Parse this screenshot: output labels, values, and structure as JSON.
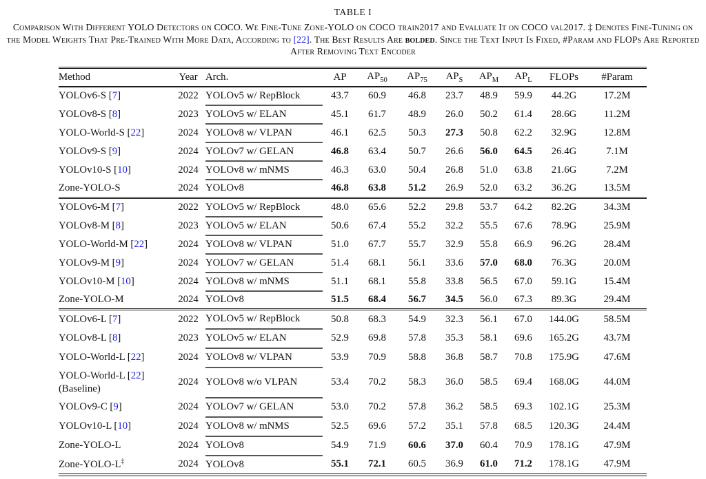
{
  "caption": {
    "label": "TABLE I",
    "part1": "Comparison With Different YOLO Detectors on COCO. We Fine-Tune Zone-YOLO on COCO train2017 and Evaluate It on COCO val2017. ‡ Denotes Fine-Tuning on the Model Weights That Pre-Trained With More Data, According to ",
    "ref": "[22]",
    "part2": ". The Best Results Are ",
    "bold_word": "bolded",
    "part3": ". Since the Text Input Is Fixed, #Param and FLOPs Are Reported After Removing Text Encoder"
  },
  "table": {
    "headers": [
      {
        "text": "Method",
        "sub": ""
      },
      {
        "text": "Year",
        "sub": ""
      },
      {
        "text": "Arch.",
        "sub": ""
      },
      {
        "text": "AP",
        "sub": ""
      },
      {
        "text": "AP",
        "sub": "50"
      },
      {
        "text": "AP",
        "sub": "75"
      },
      {
        "text": "AP",
        "sub": "S"
      },
      {
        "text": "AP",
        "sub": "M"
      },
      {
        "text": "AP",
        "sub": "L"
      },
      {
        "text": "FLOPs",
        "sub": ""
      },
      {
        "text": "#Param",
        "sub": ""
      }
    ],
    "sections": [
      {
        "id": "S",
        "rows": [
          {
            "method": "YOLOv6-S",
            "ref": "7",
            "sup": "",
            "note": "",
            "year": "2022",
            "arch": "YOLOv5 w/ RepBlock",
            "values": [
              "43.7",
              "60.9",
              "46.8",
              "23.7",
              "48.9",
              "59.9",
              "44.2G",
              "17.2M"
            ],
            "bold": []
          },
          {
            "method": "YOLOv8-S",
            "ref": "8",
            "sup": "",
            "note": "",
            "year": "2023",
            "arch": "YOLOv5 w/ ELAN",
            "values": [
              "45.1",
              "61.7",
              "48.9",
              "26.0",
              "50.2",
              "61.4",
              "28.6G",
              "11.2M"
            ],
            "bold": []
          },
          {
            "method": "YOLO-World-S",
            "ref": "22",
            "sup": "",
            "note": "",
            "year": "2024",
            "arch": "YOLOv8 w/ VLPAN",
            "values": [
              "46.1",
              "62.5",
              "50.3",
              "27.3",
              "50.8",
              "62.2",
              "32.9G",
              "12.8M"
            ],
            "bold": [
              3
            ]
          },
          {
            "method": "YOLOv9-S",
            "ref": "9",
            "sup": "",
            "note": "",
            "year": "2024",
            "arch": "YOLOv7 w/ GELAN",
            "values": [
              "46.8",
              "63.4",
              "50.7",
              "26.6",
              "56.0",
              "64.5",
              "26.4G",
              "7.1M"
            ],
            "bold": [
              0,
              4,
              5
            ]
          },
          {
            "method": "YOLOv10-S",
            "ref": "10",
            "sup": "",
            "note": "",
            "year": "2024",
            "arch": "YOLOv8 w/ mNMS",
            "values": [
              "46.3",
              "63.0",
              "50.4",
              "26.8",
              "51.0",
              "63.8",
              "21.6G",
              "7.2M"
            ],
            "bold": []
          },
          {
            "method": "Zone-YOLO-S",
            "ref": "",
            "sup": "",
            "note": "",
            "year": "2024",
            "arch": "YOLOv8",
            "values": [
              "46.8",
              "63.8",
              "51.2",
              "26.9",
              "52.0",
              "63.2",
              "36.2G",
              "13.5M"
            ],
            "bold": [
              0,
              1,
              2
            ]
          }
        ]
      },
      {
        "id": "M",
        "rows": [
          {
            "method": "YOLOv6-M",
            "ref": "7",
            "sup": "",
            "note": "",
            "year": "2022",
            "arch": "YOLOv5 w/ RepBlock",
            "values": [
              "48.0",
              "65.6",
              "52.2",
              "29.8",
              "53.7",
              "64.2",
              "82.2G",
              "34.3M"
            ],
            "bold": []
          },
          {
            "method": "YOLOv8-M",
            "ref": "8",
            "sup": "",
            "note": "",
            "year": "2023",
            "arch": "YOLOv5 w/ ELAN",
            "values": [
              "50.6",
              "67.4",
              "55.2",
              "32.2",
              "55.5",
              "67.6",
              "78.9G",
              "25.9M"
            ],
            "bold": []
          },
          {
            "method": "YOLO-World-M",
            "ref": "22",
            "sup": "",
            "note": "",
            "year": "2024",
            "arch": "YOLOv8 w/ VLPAN",
            "values": [
              "51.0",
              "67.7",
              "55.7",
              "32.9",
              "55.8",
              "66.9",
              "96.2G",
              "28.4M"
            ],
            "bold": []
          },
          {
            "method": "YOLOv9-M",
            "ref": "9",
            "sup": "",
            "note": "",
            "year": "2024",
            "arch": "YOLOv7 w/ GELAN",
            "values": [
              "51.4",
              "68.1",
              "56.1",
              "33.6",
              "57.0",
              "68.0",
              "76.3G",
              "20.0M"
            ],
            "bold": [
              4,
              5
            ]
          },
          {
            "method": "YOLOv10-M",
            "ref": "10",
            "sup": "",
            "note": "",
            "year": "2024",
            "arch": "YOLOv8 w/ mNMS",
            "values": [
              "51.1",
              "68.1",
              "55.8",
              "33.8",
              "56.5",
              "67.0",
              "59.1G",
              "15.4M"
            ],
            "bold": []
          },
          {
            "method": "Zone-YOLO-M",
            "ref": "",
            "sup": "",
            "note": "",
            "year": "2024",
            "arch": "YOLOv8",
            "values": [
              "51.5",
              "68.4",
              "56.7",
              "34.5",
              "56.0",
              "67.3",
              "89.3G",
              "29.4M"
            ],
            "bold": [
              0,
              1,
              2,
              3
            ]
          }
        ]
      },
      {
        "id": "L",
        "rows": [
          {
            "method": "YOLOv6-L",
            "ref": "7",
            "sup": "",
            "note": "",
            "year": "2022",
            "arch": "YOLOv5 w/ RepBlock",
            "values": [
              "50.8",
              "68.3",
              "54.9",
              "32.3",
              "56.1",
              "67.0",
              "144.0G",
              "58.5M"
            ],
            "bold": []
          },
          {
            "method": "YOLOv8-L",
            "ref": "8",
            "sup": "",
            "note": "",
            "year": "2023",
            "arch": "YOLOv5 w/ ELAN",
            "values": [
              "52.9",
              "69.8",
              "57.8",
              "35.3",
              "58.1",
              "69.6",
              "165.2G",
              "43.7M"
            ],
            "bold": []
          },
          {
            "method": "YOLO-World-L",
            "ref": "22",
            "sup": "",
            "note": "",
            "year": "2024",
            "arch": "YOLOv8 w/ VLPAN",
            "values": [
              "53.9",
              "70.9",
              "58.8",
              "36.8",
              "58.7",
              "70.8",
              "175.9G",
              "47.6M"
            ],
            "bold": []
          },
          {
            "method": "YOLO-World-L",
            "ref": "22",
            "sup": "",
            "note": "(Baseline)",
            "year": "2024",
            "arch": "YOLOv8 w/o VLPAN",
            "values": [
              "53.4",
              "70.2",
              "58.3",
              "36.0",
              "58.5",
              "69.4",
              "168.0G",
              "44.0M"
            ],
            "bold": []
          },
          {
            "method": "YOLOv9-C",
            "ref": "9",
            "sup": "",
            "note": "",
            "year": "2024",
            "arch": "YOLOv7 w/ GELAN",
            "values": [
              "53.0",
              "70.2",
              "57.8",
              "36.2",
              "58.5",
              "69.3",
              "102.1G",
              "25.3M"
            ],
            "bold": []
          },
          {
            "method": "YOLOv10-L",
            "ref": "10",
            "sup": "",
            "note": "",
            "year": "2024",
            "arch": "YOLOv8 w/ mNMS",
            "values": [
              "52.5",
              "69.6",
              "57.2",
              "35.1",
              "57.8",
              "68.5",
              "120.3G",
              "24.4M"
            ],
            "bold": []
          },
          {
            "method": "Zone-YOLO-L",
            "ref": "",
            "sup": "",
            "note": "",
            "year": "2024",
            "arch": "YOLOv8",
            "values": [
              "54.9",
              "71.9",
              "60.6",
              "37.0",
              "60.4",
              "70.9",
              "178.1G",
              "47.9M"
            ],
            "bold": [
              2,
              3
            ]
          },
          {
            "method": "Zone-YOLO-L",
            "ref": "",
            "sup": "‡",
            "note": "",
            "year": "2024",
            "arch": "YOLOv8",
            "values": [
              "55.1",
              "72.1",
              "60.5",
              "36.9",
              "61.0",
              "71.2",
              "178.1G",
              "47.9M"
            ],
            "bold": [
              0,
              1,
              4,
              5
            ]
          }
        ]
      }
    ]
  },
  "colors": {
    "link_blue": "#2222dd",
    "text": "#111111"
  }
}
